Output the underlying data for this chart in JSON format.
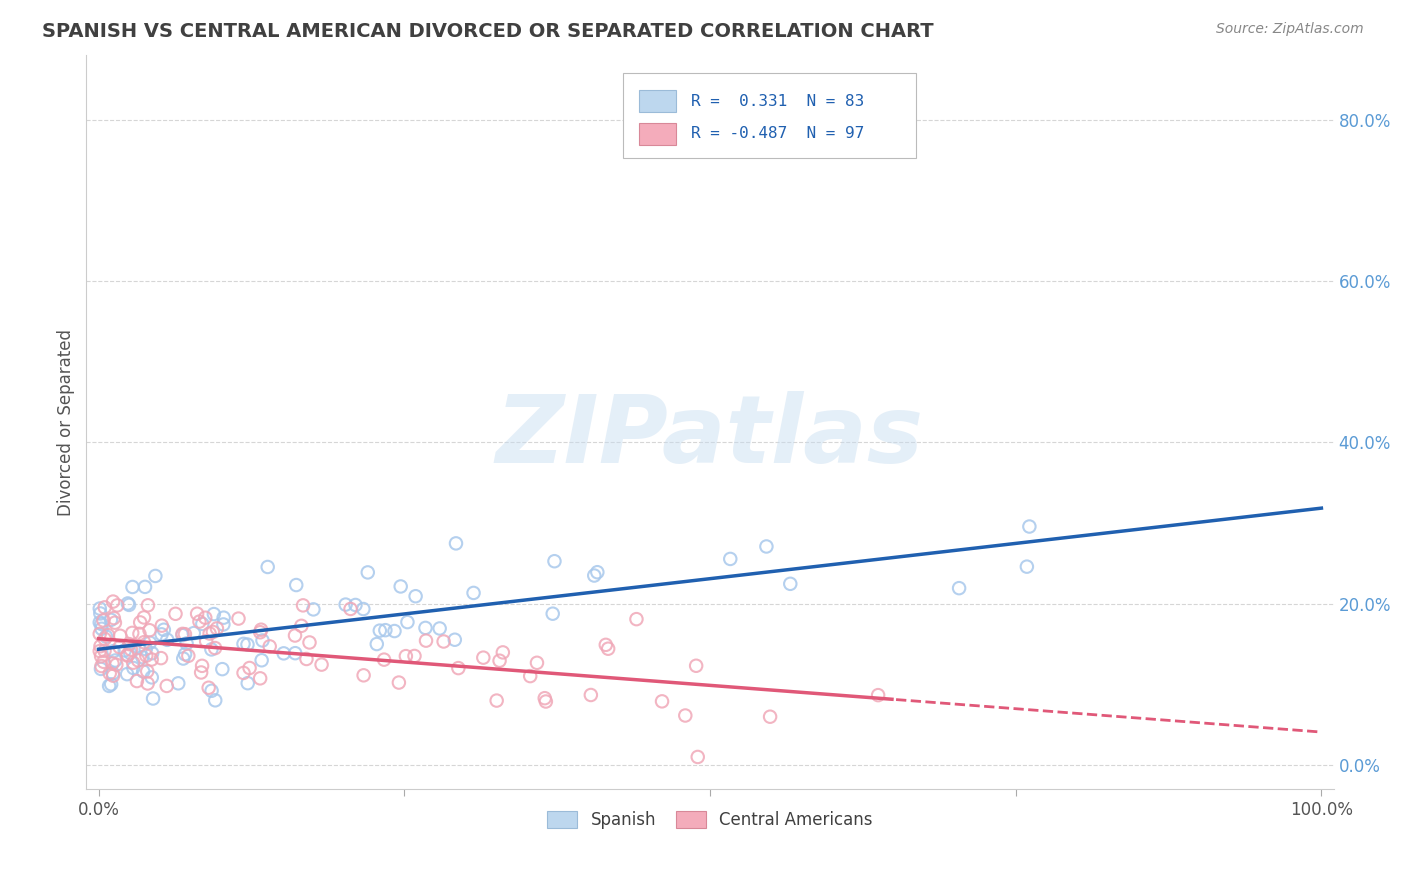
{
  "title": "SPANISH VS CENTRAL AMERICAN DIVORCED OR SEPARATED CORRELATION CHART",
  "source_text": "Source: ZipAtlas.com",
  "ylabel": "Divorced or Separated",
  "x_min": 0.0,
  "x_max": 1.0,
  "y_min": -0.03,
  "y_max": 0.88,
  "y_ticks": [
    0.0,
    0.2,
    0.4,
    0.6,
    0.8
  ],
  "y_tick_labels": [
    "0.0%",
    "20.0%",
    "40.0%",
    "60.0%",
    "80.0%"
  ],
  "x_ticks": [
    0.0,
    0.25,
    0.5,
    0.75,
    1.0
  ],
  "x_tick_labels": [
    "0.0%",
    "",
    "",
    "",
    "100.0%"
  ],
  "blue_R": 0.331,
  "blue_N": 83,
  "pink_R": -0.487,
  "pink_N": 97,
  "blue_color": "#A8C8EC",
  "pink_color": "#F0A8B8",
  "blue_line_color": "#2060B0",
  "pink_line_color": "#E05878",
  "watermark": "ZIPatlas",
  "background_color": "#FFFFFF",
  "plot_bg_color": "#FFFFFF",
  "grid_color": "#CCCCCC",
  "title_color": "#404040",
  "legend_box_color_blue": "#BDD7EE",
  "legend_box_color_pink": "#F4ACBB",
  "blue_scatter_seed": 12,
  "pink_scatter_seed": 99
}
